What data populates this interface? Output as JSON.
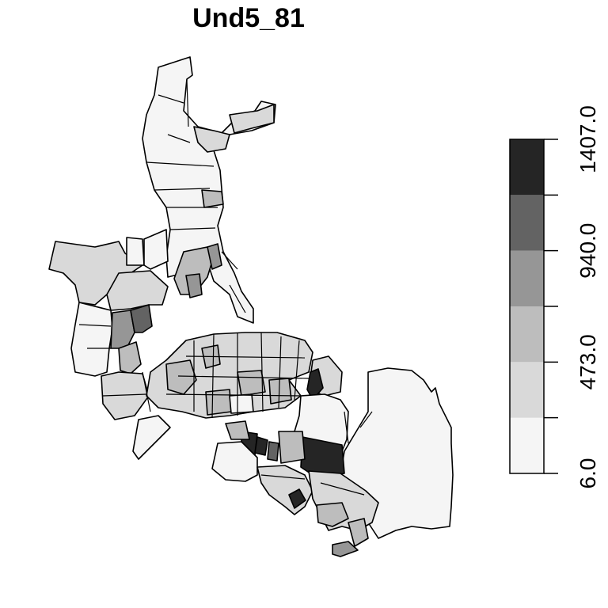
{
  "map": {
    "title": "Und5_81",
    "legend": {
      "breaks": [
        "6.0",
        "473.0",
        "940.0",
        "1407.0"
      ],
      "classes": [
        {
          "color": "#f5f5f5"
        },
        {
          "color": "#d9d9d9"
        },
        {
          "color": "#bdbdbd"
        },
        {
          "color": "#969696"
        },
        {
          "color": "#636363"
        },
        {
          "color": "#252525"
        }
      ]
    }
  }
}
